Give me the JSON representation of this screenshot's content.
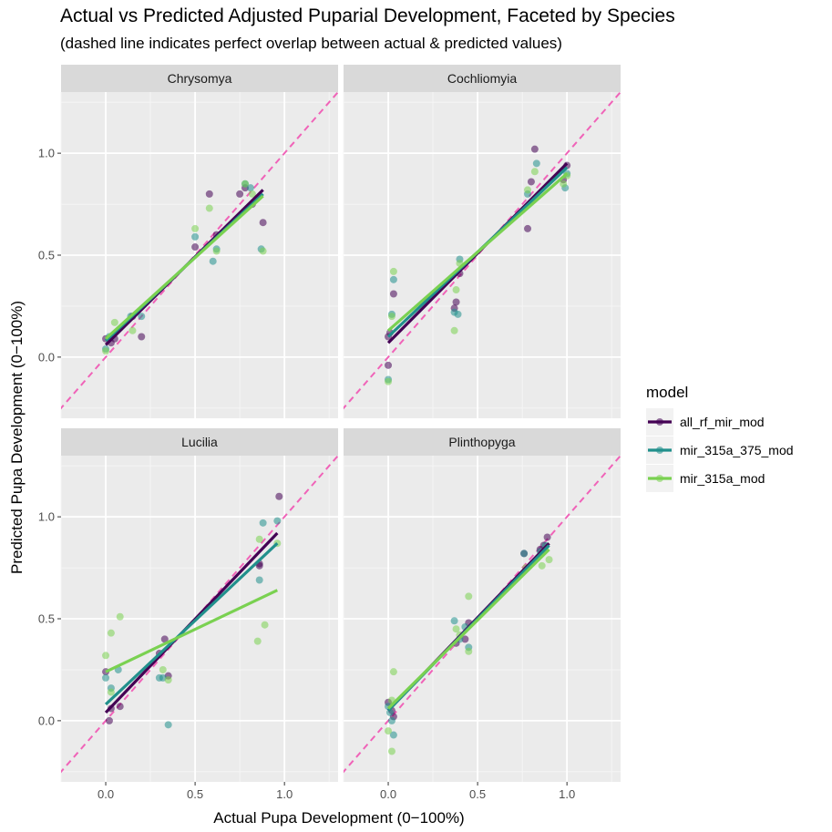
{
  "title": "Actual vs Predicted Adjusted Puparial Development, Faceted by Species",
  "subtitle": "(dashed line indicates perfect overlap between actual & predicted values)",
  "chart_data": {
    "type": "scatter",
    "xlabel": "Actual Pupa Development (0−100%)",
    "ylabel": "Predicted Pupa Development (0−100%)",
    "xlim": [
      -0.25,
      1.3
    ],
    "ylim": [
      -0.3,
      1.3
    ],
    "x_ticks": [
      0.0,
      0.5,
      1.0
    ],
    "x_tick_labels": [
      "0.0",
      "0.5",
      "1.0"
    ],
    "y_ticks": [
      0.0,
      0.5,
      1.0
    ],
    "y_tick_labels": [
      "0.0",
      "0.5",
      "1.0"
    ],
    "grid": true,
    "reference_line": {
      "style": "dashed",
      "color": "#f063b8",
      "slope": 1,
      "intercept": 0
    },
    "legend": {
      "title": "model",
      "position": "right",
      "entries": [
        {
          "name": "all_rf_mir_mod",
          "color": "#440154"
        },
        {
          "name": "mir_315a_375_mod",
          "color": "#21908c"
        },
        {
          "name": "mir_315a_mod",
          "color": "#7ad151"
        }
      ]
    },
    "facets": [
      {
        "name": "Chrysomya",
        "series": [
          {
            "name": "all_rf_mir_mod",
            "color": "#440154",
            "points": [
              [
                0.0,
                0.09
              ],
              [
                0.03,
                0.07
              ],
              [
                0.05,
                0.09
              ],
              [
                0.15,
                0.2
              ],
              [
                0.2,
                0.1
              ],
              [
                0.5,
                0.54
              ],
              [
                0.58,
                0.8
              ],
              [
                0.62,
                0.6
              ],
              [
                0.75,
                0.8
              ],
              [
                0.78,
                0.83
              ],
              [
                0.82,
                0.75
              ],
              [
                0.88,
                0.66
              ]
            ],
            "fit": [
              [
                0.0,
                0.06
              ],
              [
                0.88,
                0.82
              ]
            ]
          },
          {
            "name": "mir_315a_375_mod",
            "color": "#21908c",
            "points": [
              [
                0.0,
                0.04
              ],
              [
                0.02,
                0.1
              ],
              [
                0.14,
                0.2
              ],
              [
                0.2,
                0.2
              ],
              [
                0.5,
                0.59
              ],
              [
                0.6,
                0.47
              ],
              [
                0.62,
                0.53
              ],
              [
                0.78,
                0.85
              ],
              [
                0.81,
                0.83
              ],
              [
                0.87,
                0.53
              ]
            ],
            "fit": [
              [
                0.0,
                0.08
              ],
              [
                0.88,
                0.8
              ]
            ]
          },
          {
            "name": "mir_315a_mod",
            "color": "#7ad151",
            "points": [
              [
                0.0,
                0.03
              ],
              [
                0.05,
                0.17
              ],
              [
                0.15,
                0.13
              ],
              [
                0.5,
                0.63
              ],
              [
                0.58,
                0.73
              ],
              [
                0.62,
                0.52
              ],
              [
                0.78,
                0.85
              ],
              [
                0.82,
                0.8
              ],
              [
                0.88,
                0.52
              ]
            ],
            "fit": [
              [
                0.0,
                0.09
              ],
              [
                0.88,
                0.79
              ]
            ]
          }
        ]
      },
      {
        "name": "Cochliomyia",
        "series": [
          {
            "name": "all_rf_mir_mod",
            "color": "#440154",
            "points": [
              [
                0.0,
                0.1
              ],
              [
                0.01,
                0.12
              ],
              [
                0.03,
                0.31
              ],
              [
                0.37,
                0.24
              ],
              [
                0.38,
                0.27
              ],
              [
                0.4,
                0.41
              ],
              [
                0.78,
                0.63
              ],
              [
                0.8,
                0.86
              ],
              [
                0.82,
                1.02
              ],
              [
                0.98,
                0.87
              ],
              [
                1.0,
                0.94
              ],
              [
                0.0,
                -0.04
              ]
            ],
            "fit": [
              [
                0.0,
                0.07
              ],
              [
                1.0,
                0.95
              ]
            ]
          },
          {
            "name": "mir_315a_375_mod",
            "color": "#21908c",
            "points": [
              [
                0.0,
                -0.11
              ],
              [
                0.02,
                0.21
              ],
              [
                0.03,
                0.38
              ],
              [
                0.37,
                0.22
              ],
              [
                0.39,
                0.21
              ],
              [
                0.4,
                0.48
              ],
              [
                0.78,
                0.8
              ],
              [
                0.83,
                0.95
              ],
              [
                0.99,
                0.83
              ],
              [
                1.0,
                0.9
              ]
            ],
            "fit": [
              [
                0.0,
                0.1
              ],
              [
                1.0,
                0.93
              ]
            ]
          },
          {
            "name": "mir_315a_mod",
            "color": "#7ad151",
            "points": [
              [
                0.0,
                -0.12
              ],
              [
                0.02,
                0.2
              ],
              [
                0.03,
                0.42
              ],
              [
                0.37,
                0.13
              ],
              [
                0.38,
                0.33
              ],
              [
                0.4,
                0.46
              ],
              [
                0.78,
                0.82
              ],
              [
                0.82,
                0.91
              ],
              [
                0.98,
                0.85
              ],
              [
                1.0,
                0.89
              ]
            ],
            "fit": [
              [
                0.0,
                0.13
              ],
              [
                1.0,
                0.9
              ]
            ]
          }
        ]
      },
      {
        "name": "Lucilia",
        "series": [
          {
            "name": "all_rf_mir_mod",
            "color": "#440154",
            "points": [
              [
                0.0,
                0.24
              ],
              [
                0.02,
                0.0
              ],
              [
                0.03,
                0.06
              ],
              [
                0.08,
                0.07
              ],
              [
                0.3,
                0.33
              ],
              [
                0.33,
                0.4
              ],
              [
                0.35,
                0.22
              ],
              [
                0.86,
                0.77
              ],
              [
                0.97,
                1.1
              ],
              [
                0.86,
                0.76
              ]
            ],
            "fit": [
              [
                0.0,
                0.04
              ],
              [
                0.96,
                0.92
              ]
            ]
          },
          {
            "name": "mir_315a_375_mod",
            "color": "#21908c",
            "points": [
              [
                0.0,
                0.21
              ],
              [
                0.03,
                0.16
              ],
              [
                0.07,
                0.25
              ],
              [
                0.3,
                0.21
              ],
              [
                0.32,
                0.21
              ],
              [
                0.35,
                -0.02
              ],
              [
                0.86,
                0.69
              ],
              [
                0.88,
                0.97
              ],
              [
                0.96,
                0.98
              ]
            ],
            "fit": [
              [
                0.0,
                0.08
              ],
              [
                0.96,
                0.87
              ]
            ]
          },
          {
            "name": "mir_315a_mod",
            "color": "#7ad151",
            "points": [
              [
                0.0,
                0.32
              ],
              [
                0.03,
                0.43
              ],
              [
                0.08,
                0.51
              ],
              [
                0.03,
                0.14
              ],
              [
                0.32,
                0.25
              ],
              [
                0.35,
                0.2
              ],
              [
                0.85,
                0.39
              ],
              [
                0.86,
                0.89
              ],
              [
                0.89,
                0.47
              ],
              [
                0.96,
                0.87
              ]
            ],
            "fit": [
              [
                0.0,
                0.24
              ],
              [
                0.96,
                0.64
              ]
            ]
          }
        ]
      },
      {
        "name": "Plinthopyga",
        "series": [
          {
            "name": "all_rf_mir_mod",
            "color": "#440154",
            "points": [
              [
                0.0,
                0.09
              ],
              [
                0.02,
                0.05
              ],
              [
                0.03,
                0.02
              ],
              [
                0.38,
                0.38
              ],
              [
                0.43,
                0.4
              ],
              [
                0.45,
                0.48
              ],
              [
                0.76,
                0.82
              ],
              [
                0.85,
                0.84
              ],
              [
                0.87,
                0.86
              ],
              [
                0.89,
                0.9
              ]
            ],
            "fit": [
              [
                0.0,
                0.05
              ],
              [
                0.9,
                0.87
              ]
            ]
          },
          {
            "name": "mir_315a_375_mod",
            "color": "#21908c",
            "points": [
              [
                0.0,
                0.07
              ],
              [
                0.01,
                0.04
              ],
              [
                0.02,
                0.0
              ],
              [
                0.03,
                -0.07
              ],
              [
                0.37,
                0.49
              ],
              [
                0.4,
                0.4
              ],
              [
                0.43,
                0.46
              ],
              [
                0.45,
                0.36
              ],
              [
                0.76,
                0.82
              ],
              [
                0.85,
                0.83
              ],
              [
                0.88,
                0.86
              ]
            ],
            "fit": [
              [
                0.0,
                0.05
              ],
              [
                0.9,
                0.86
              ]
            ]
          },
          {
            "name": "mir_315a_mod",
            "color": "#7ad151",
            "points": [
              [
                0.0,
                -0.05
              ],
              [
                0.02,
                0.1
              ],
              [
                0.03,
                0.24
              ],
              [
                0.02,
                -0.15
              ],
              [
                0.38,
                0.45
              ],
              [
                0.4,
                0.42
              ],
              [
                0.45,
                0.34
              ],
              [
                0.45,
                0.61
              ],
              [
                0.77,
                0.75
              ],
              [
                0.86,
                0.76
              ],
              [
                0.9,
                0.79
              ]
            ],
            "fit": [
              [
                0.0,
                0.06
              ],
              [
                0.9,
                0.84
              ]
            ]
          }
        ]
      }
    ]
  }
}
